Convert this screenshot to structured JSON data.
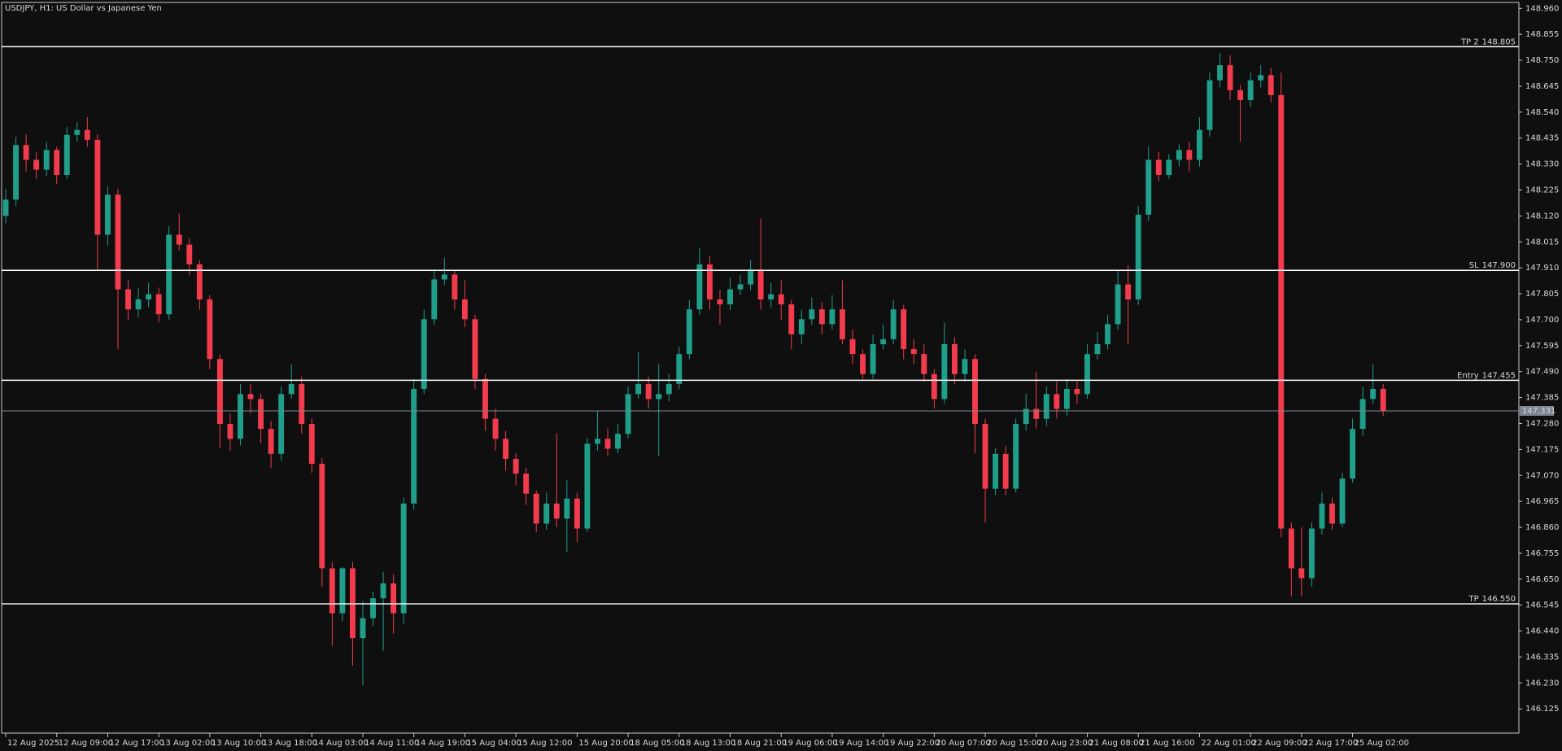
{
  "chart_data": {
    "type": "candlestick",
    "title": "USDJPY, H1:  US Dollar vs Japanese Yen",
    "up_color": "#1f9e89",
    "down_color": "#f23b4c",
    "level_color": "#ffffff",
    "current_color": "#7d8590",
    "xlim": [
      -0.4,
      148.3
    ],
    "ylim": [
      146.027,
      148.984
    ],
    "yticks": [
      {
        "value": 148.96,
        "label": "148.960"
      },
      148.855,
      {
        "value": 148.75,
        "label": "148.750"
      },
      148.645,
      {
        "value": 148.54,
        "label": "148.540"
      },
      148.435,
      {
        "value": 148.33,
        "label": "148.330"
      },
      148.225,
      {
        "value": 148.12,
        "label": "148.120"
      },
      148.015,
      {
        "value": 147.91,
        "label": "147.910"
      },
      147.805,
      {
        "value": 147.7,
        "label": "147.700"
      },
      147.595,
      {
        "value": 147.49,
        "label": "147.490"
      },
      147.385,
      {
        "value": 147.28,
        "label": "147.280"
      },
      147.175,
      {
        "value": 147.07,
        "label": "147.070"
      },
      146.965,
      {
        "value": 146.86,
        "label": "146.860"
      },
      146.755,
      {
        "value": 146.65,
        "label": "146.650"
      },
      146.545,
      {
        "value": 146.44,
        "label": "146.440"
      },
      146.335,
      {
        "value": 146.23,
        "label": "146.230"
      },
      146.125
    ],
    "xticks": [
      {
        "value": 0,
        "label": "12 Aug 2025"
      },
      {
        "value": 5,
        "label": "12 Aug 09:00"
      },
      {
        "value": 10,
        "label": "12 Aug 17:00"
      },
      {
        "value": 15,
        "label": "13 Aug 02:00"
      },
      {
        "value": 20,
        "label": "13 Aug 10:00"
      },
      {
        "value": 25,
        "label": "13 Aug 18:00"
      },
      {
        "value": 30,
        "label": "14 Aug 03:00"
      },
      {
        "value": 35,
        "label": "14 Aug 11:00"
      },
      {
        "value": 40,
        "label": "14 Aug 19:00"
      },
      {
        "value": 45,
        "label": "15 Aug 04:00"
      },
      {
        "value": 50,
        "label": "15 Aug 12:00"
      },
      {
        "value": 56,
        "label": "15 Aug 20:00"
      },
      {
        "value": 61,
        "label": "18 Aug 05:00"
      },
      {
        "value": 66,
        "label": "18 Aug 13:00"
      },
      {
        "value": 71,
        "label": "18 Aug 21:00"
      },
      {
        "value": 76,
        "label": "19 Aug 06:00"
      },
      {
        "value": 81,
        "label": "19 Aug 14:00"
      },
      {
        "value": 86,
        "label": "19 Aug 22:00"
      },
      {
        "value": 91,
        "label": "20 Aug 07:00"
      },
      {
        "value": 96,
        "label": "20 Aug 15:00"
      },
      {
        "value": 101,
        "label": "20 Aug 23:00"
      },
      {
        "value": 106,
        "label": "21 Aug 08:00"
      },
      {
        "value": 111,
        "label": "21 Aug 16:00"
      },
      {
        "value": 117,
        "label": "22 Aug 01:00"
      },
      {
        "value": 122,
        "label": "22 Aug 09:00"
      },
      {
        "value": 127,
        "label": "22 Aug 17:00"
      },
      {
        "value": 132,
        "label": "25 Aug 02:00"
      }
    ],
    "levels": [
      {
        "label": "TP 2",
        "price": 148.805
      },
      {
        "label": "SL",
        "price": 147.9,
        "price_label": "147.900"
      },
      {
        "label": "Entry",
        "price": 147.455
      },
      {
        "label": "TP",
        "price": 146.55,
        "price_label": "146.550"
      }
    ],
    "current_price": 147.331,
    "open": [
      148.12,
      148.186,
      148.407,
      148.347,
      148.307,
      148.387,
      148.286,
      148.448,
      148.468,
      148.428,
      148.044,
      148.206,
      147.823,
      147.742,
      147.782,
      147.803,
      147.722,
      148.044,
      148.004,
      147.924,
      147.782,
      147.541,
      147.278,
      147.218,
      147.399,
      147.379,
      147.258,
      147.157,
      147.399,
      147.44,
      147.278,
      147.117,
      146.694,
      146.512,
      146.694,
      146.412,
      146.492,
      146.573,
      146.633,
      146.512,
      146.956,
      147.42,
      147.702,
      147.863,
      147.883,
      147.782,
      147.702,
      147.46,
      147.299,
      147.218,
      147.137,
      147.077,
      146.996,
      146.875,
      146.956,
      146.895,
      146.976,
      146.855,
      147.198,
      147.218,
      147.178,
      147.238,
      147.399,
      147.44,
      147.379,
      147.399,
      147.44,
      147.561,
      147.742,
      147.924,
      147.782,
      147.762,
      147.823,
      147.843,
      147.903,
      147.782,
      147.803,
      147.762,
      147.641,
      147.702,
      147.742,
      147.682,
      147.742,
      147.621,
      147.561,
      147.48,
      147.601,
      147.621,
      147.742,
      147.581,
      147.561,
      147.48,
      147.379,
      147.601,
      147.48,
      147.541,
      147.278,
      147.016,
      147.157,
      147.016,
      147.278,
      147.339,
      147.299,
      147.399,
      147.339,
      147.42,
      147.399,
      147.561,
      147.601,
      147.682,
      147.843,
      147.782,
      148.125,
      148.347,
      148.286,
      148.347,
      148.387,
      148.347,
      148.468,
      148.669,
      148.73,
      148.629,
      148.589,
      148.669,
      148.69,
      148.609,
      146.855,
      146.694,
      146.654,
      146.855,
      146.956,
      146.875,
      147.057,
      147.258,
      147.379,
      147.42
    ],
    "high": [
      148.23,
      148.44,
      148.45,
      148.38,
      148.42,
      148.4,
      148.48,
      148.5,
      148.52,
      148.45,
      148.24,
      148.23,
      147.86,
      147.83,
      147.85,
      147.83,
      148.08,
      148.13,
      148.03,
      147.94,
      147.8,
      147.56,
      147.32,
      147.44,
      147.44,
      147.4,
      147.29,
      147.43,
      147.52,
      147.47,
      147.3,
      147.14,
      146.72,
      146.7,
      146.72,
      146.56,
      146.6,
      146.68,
      146.67,
      146.98,
      147.46,
      147.74,
      147.9,
      147.95,
      147.9,
      147.86,
      147.72,
      147.48,
      147.34,
      147.25,
      147.16,
      147.1,
      147.01,
      147.0,
      147.24,
      147.05,
      147.0,
      147.22,
      147.33,
      147.26,
      147.28,
      147.43,
      147.57,
      147.47,
      147.52,
      147.48,
      147.59,
      147.78,
      147.99,
      147.96,
      147.82,
      147.87,
      147.88,
      147.94,
      148.11,
      147.85,
      147.86,
      147.78,
      147.74,
      147.79,
      147.77,
      147.8,
      147.86,
      147.66,
      147.58,
      147.64,
      147.68,
      147.78,
      147.76,
      147.62,
      147.6,
      147.5,
      147.69,
      147.63,
      147.58,
      147.56,
      147.3,
      147.18,
      147.19,
      147.3,
      147.4,
      147.49,
      147.43,
      147.45,
      147.46,
      147.45,
      147.6,
      147.65,
      147.72,
      147.9,
      147.92,
      148.16,
      148.4,
      148.38,
      148.37,
      148.41,
      148.42,
      148.52,
      148.7,
      148.78,
      148.77,
      148.65,
      148.7,
      148.73,
      148.72,
      148.7,
      146.88,
      146.86,
      146.88,
      147.0,
      146.98,
      147.08,
      147.3,
      147.43,
      147.52,
      147.44
    ],
    "low": [
      148.09,
      148.16,
      148.3,
      148.27,
      148.28,
      148.25,
      148.27,
      148.42,
      148.4,
      147.9,
      148.0,
      147.58,
      147.7,
      147.71,
      147.75,
      147.69,
      147.7,
      147.98,
      147.88,
      147.74,
      147.5,
      147.18,
      147.17,
      147.19,
      147.32,
      147.2,
      147.1,
      147.13,
      147.38,
      147.24,
      147.08,
      146.62,
      146.38,
      146.48,
      146.3,
      146.22,
      146.46,
      146.36,
      146.43,
      146.47,
      146.93,
      147.4,
      147.68,
      147.84,
      147.74,
      147.67,
      147.42,
      147.25,
      147.17,
      147.09,
      147.03,
      146.95,
      146.84,
      146.85,
      146.86,
      146.76,
      146.8,
      146.84,
      147.17,
      147.15,
      147.16,
      147.22,
      147.38,
      147.34,
      147.15,
      147.37,
      147.42,
      147.54,
      147.72,
      147.74,
      147.68,
      147.74,
      147.8,
      147.82,
      147.74,
      147.75,
      147.7,
      147.58,
      147.6,
      147.68,
      147.64,
      147.66,
      147.6,
      147.52,
      147.46,
      147.46,
      147.58,
      147.6,
      147.54,
      147.52,
      147.45,
      147.34,
      147.36,
      147.44,
      147.45,
      147.16,
      146.88,
      146.99,
      146.99,
      147.0,
      147.25,
      147.26,
      147.27,
      147.3,
      147.31,
      147.36,
      147.38,
      147.54,
      147.58,
      147.66,
      147.6,
      147.76,
      148.1,
      148.26,
      148.27,
      148.32,
      148.3,
      148.32,
      148.44,
      148.64,
      148.59,
      148.42,
      148.56,
      148.64,
      148.58,
      146.82,
      146.58,
      146.58,
      146.62,
      146.83,
      146.85,
      146.86,
      147.04,
      147.23,
      147.36,
      147.31
    ],
    "close": [
      148.186,
      148.407,
      148.347,
      148.307,
      148.387,
      148.286,
      148.448,
      148.468,
      148.428,
      148.044,
      148.206,
      147.823,
      147.742,
      147.782,
      147.803,
      147.722,
      148.044,
      148.004,
      147.924,
      147.782,
      147.541,
      147.278,
      147.218,
      147.399,
      147.379,
      147.258,
      147.157,
      147.399,
      147.44,
      147.278,
      147.117,
      146.694,
      146.512,
      146.694,
      146.412,
      146.492,
      146.573,
      146.633,
      146.512,
      146.956,
      147.42,
      147.702,
      147.863,
      147.883,
      147.782,
      147.702,
      147.46,
      147.299,
      147.218,
      147.137,
      147.077,
      146.996,
      146.875,
      146.956,
      146.895,
      146.976,
      146.855,
      147.198,
      147.218,
      147.178,
      147.238,
      147.399,
      147.44,
      147.379,
      147.399,
      147.44,
      147.561,
      147.742,
      147.924,
      147.782,
      147.762,
      147.823,
      147.843,
      147.903,
      147.782,
      147.803,
      147.762,
      147.641,
      147.702,
      147.742,
      147.682,
      147.742,
      147.621,
      147.561,
      147.48,
      147.601,
      147.621,
      147.742,
      147.581,
      147.561,
      147.48,
      147.379,
      147.601,
      147.48,
      147.541,
      147.278,
      147.016,
      147.157,
      147.016,
      147.278,
      147.339,
      147.299,
      147.399,
      147.339,
      147.42,
      147.399,
      147.561,
      147.601,
      147.682,
      147.843,
      147.782,
      148.125,
      148.347,
      148.286,
      148.347,
      148.387,
      148.347,
      148.468,
      148.669,
      148.73,
      148.629,
      148.589,
      148.669,
      148.69,
      148.609,
      146.855,
      146.694,
      146.654,
      146.855,
      146.956,
      146.875,
      147.057,
      147.258,
      147.379,
      147.42,
      147.331
    ]
  }
}
